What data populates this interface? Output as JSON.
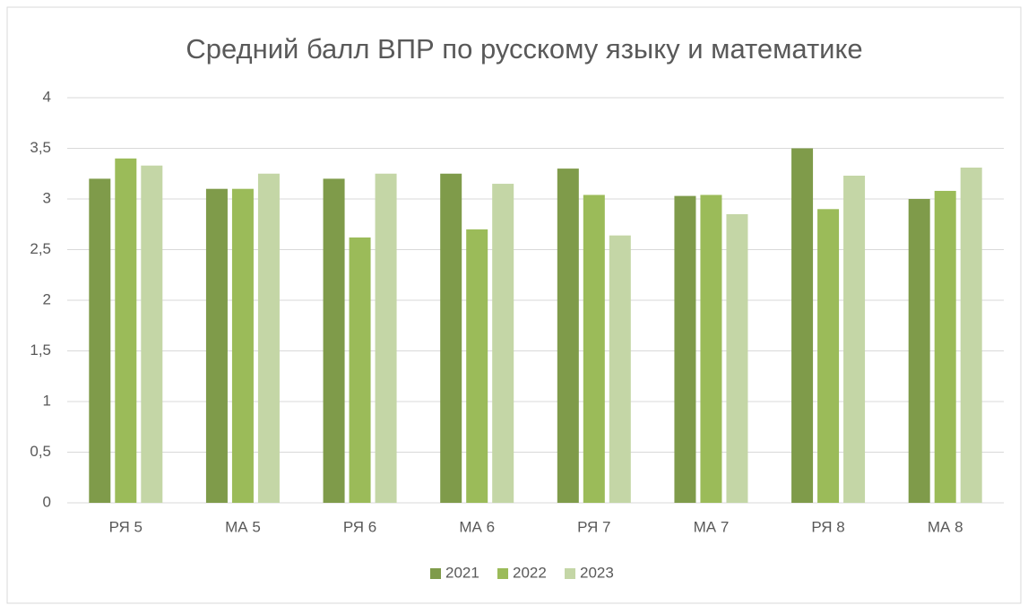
{
  "chart_data": {
    "type": "bar",
    "title": "Средний балл ВПР по русскому языку и математике",
    "categories": [
      "РЯ 5",
      "МА 5",
      "РЯ 6",
      "МА 6",
      "РЯ 7",
      "МА 7",
      "РЯ 8",
      "МА 8"
    ],
    "series": [
      {
        "name": "2021",
        "color": "#7f9b4a",
        "values": [
          3.2,
          3.1,
          3.2,
          3.25,
          3.3,
          3.03,
          3.5,
          3.0
        ]
      },
      {
        "name": "2022",
        "color": "#9bbb59",
        "values": [
          3.4,
          3.1,
          2.62,
          2.7,
          3.04,
          3.04,
          2.9,
          3.08
        ]
      },
      {
        "name": "2023",
        "color": "#c4d6a6",
        "values": [
          3.33,
          3.25,
          3.25,
          3.15,
          2.64,
          2.85,
          3.23,
          3.31
        ]
      }
    ],
    "ylim": [
      0,
      4
    ],
    "yticks": [
      0,
      {
        "value": 0.5,
        "label": "0,5"
      },
      1,
      {
        "value": 1.5,
        "label": "1,5"
      },
      2,
      {
        "value": 2.5,
        "label": "2,5"
      },
      3,
      {
        "value": 3.5,
        "label": "3,5"
      },
      4
    ],
    "grid": true,
    "legend": "bottom"
  }
}
